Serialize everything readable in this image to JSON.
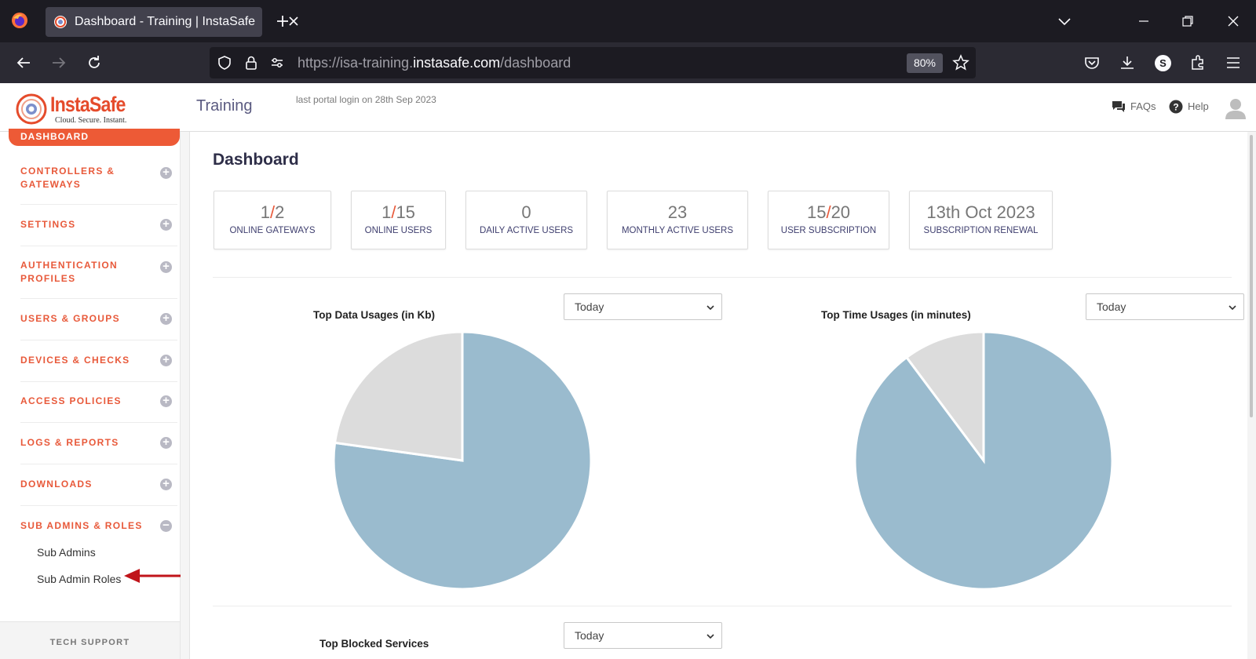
{
  "browser": {
    "tab_title": "Dashboard - Training | InstaSafe",
    "url_prefix": "https://isa-training.",
    "url_host": "instasafe.com",
    "url_path": "/dashboard",
    "zoom": "80%",
    "profile_initial": "S"
  },
  "header": {
    "logo_text": "InstaSafe",
    "logo_tagline": "Cloud. Secure. Instant.",
    "portal_name": "Training",
    "last_login": "last portal login on 28th Sep 2023",
    "faqs": "FAQs",
    "help": "Help"
  },
  "sidebar": {
    "active": "DASHBOARD",
    "items": [
      {
        "label": "CONTROLLERS & GATEWAYS",
        "toggle": "+"
      },
      {
        "label": "SETTINGS",
        "toggle": "+"
      },
      {
        "label": "AUTHENTICATION PROFILES",
        "toggle": "+"
      },
      {
        "label": "USERS & GROUPS",
        "toggle": "+"
      },
      {
        "label": "DEVICES & CHECKS",
        "toggle": "+"
      },
      {
        "label": "ACCESS POLICIES",
        "toggle": "+"
      },
      {
        "label": "LOGS & REPORTS",
        "toggle": "+"
      },
      {
        "label": "DOWNLOADS",
        "toggle": "+"
      },
      {
        "label": "SUB ADMINS & ROLES",
        "toggle": "−"
      }
    ],
    "sub_items": [
      "Sub Admins",
      "Sub Admin Roles"
    ],
    "tech_support": "TECH SUPPORT"
  },
  "main": {
    "title": "Dashboard",
    "stats": [
      {
        "a": "1",
        "sep": "/",
        "b": "2",
        "label": "ONLINE GATEWAYS"
      },
      {
        "a": "1",
        "sep": "/",
        "b": "15",
        "label": "ONLINE USERS"
      },
      {
        "a": "0",
        "sep": "",
        "b": "",
        "label": "DAILY ACTIVE USERS"
      },
      {
        "a": "23",
        "sep": "",
        "b": "",
        "label": "MONTHLY ACTIVE USERS"
      },
      {
        "a": "15",
        "sep": "/",
        "b": "20",
        "label": "USER SUBSCRIPTION"
      },
      {
        "a": "13th Oct 2023",
        "sep": "",
        "b": "",
        "label": "SUBSCRIPTION RENEWAL"
      }
    ],
    "widgets": {
      "data_usage": {
        "title": "Top Data Usages (in Kb)",
        "period": "Today"
      },
      "time_usage": {
        "title": "Top Time Usages (in minutes)",
        "period": "Today"
      },
      "blocked": {
        "title": "Top Blocked Services",
        "period": "Today"
      }
    }
  },
  "colors": {
    "accent": "#e8593a",
    "pie_primary": "#9abbce",
    "pie_secondary": "#dcdcdc"
  },
  "chart_data": [
    {
      "type": "pie",
      "title": "Top Data Usages (in Kb)",
      "values": [
        0.772,
        0.228
      ],
      "colors": [
        "#9abbce",
        "#dcdcdc"
      ]
    },
    {
      "type": "pie",
      "title": "Top Time Usages (in minutes)",
      "values": [
        0.898,
        0.102
      ],
      "colors": [
        "#9abbce",
        "#dcdcdc"
      ]
    }
  ]
}
